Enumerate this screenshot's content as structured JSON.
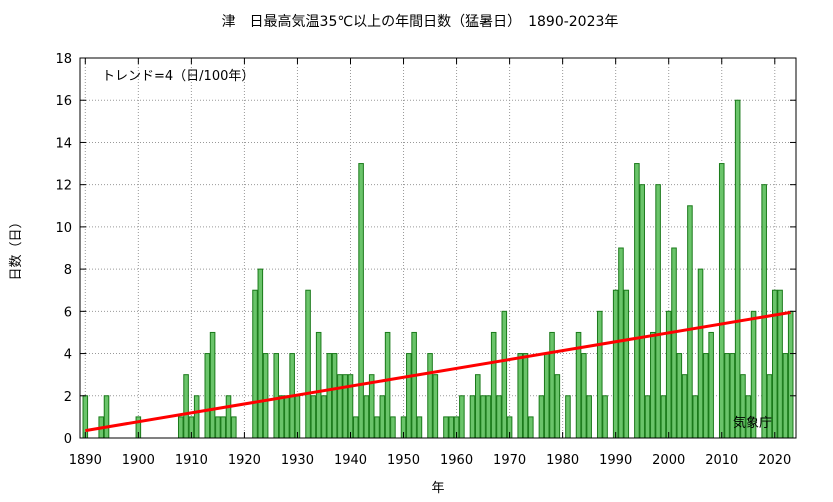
{
  "chart_data": {
    "type": "bar",
    "title": "津　日最高気温35℃以上の年間日数（猛暑日）　1890-2023年",
    "xlabel": "年",
    "ylabel": "日数（日）",
    "xlim": [
      1889,
      2024
    ],
    "ylim": [
      0,
      18
    ],
    "x_ticks": [
      1890,
      1900,
      1910,
      1920,
      1930,
      1940,
      1950,
      1960,
      1970,
      1980,
      1990,
      2000,
      2010,
      2020
    ],
    "y_ticks": [
      0,
      2,
      4,
      6,
      8,
      10,
      12,
      14,
      16,
      18
    ],
    "grid": true,
    "bar_color": "#6ac46a",
    "bar_edge_color": "#1a7a1a",
    "trend_color": "#ff0000",
    "trend_annotation": "トレンド=4（日/100年）",
    "source_label": "気象庁",
    "trend": {
      "x": [
        1890,
        2023
      ],
      "y": [
        0.35,
        5.95
      ]
    },
    "x": [
      1890,
      1891,
      1892,
      1893,
      1894,
      1895,
      1896,
      1897,
      1898,
      1899,
      1900,
      1901,
      1902,
      1903,
      1904,
      1905,
      1906,
      1907,
      1908,
      1909,
      1910,
      1911,
      1912,
      1913,
      1914,
      1915,
      1916,
      1917,
      1918,
      1919,
      1920,
      1921,
      1922,
      1923,
      1924,
      1925,
      1926,
      1927,
      1928,
      1929,
      1930,
      1931,
      1932,
      1933,
      1934,
      1935,
      1936,
      1937,
      1938,
      1939,
      1940,
      1941,
      1942,
      1943,
      1944,
      1945,
      1946,
      1947,
      1948,
      1949,
      1950,
      1951,
      1952,
      1953,
      1954,
      1955,
      1956,
      1957,
      1958,
      1959,
      1960,
      1961,
      1962,
      1963,
      1964,
      1965,
      1966,
      1967,
      1968,
      1969,
      1970,
      1971,
      1972,
      1973,
      1974,
      1975,
      1976,
      1977,
      1978,
      1979,
      1980,
      1981,
      1982,
      1983,
      1984,
      1985,
      1986,
      1987,
      1988,
      1989,
      1990,
      1991,
      1992,
      1993,
      1994,
      1995,
      1996,
      1997,
      1998,
      1999,
      2000,
      2001,
      2002,
      2003,
      2004,
      2005,
      2006,
      2007,
      2008,
      2009,
      2010,
      2011,
      2012,
      2013,
      2014,
      2015,
      2016,
      2017,
      2018,
      2019,
      2020,
      2021,
      2022,
      2023
    ],
    "values": [
      2,
      0,
      0,
      1,
      2,
      0,
      0,
      0,
      0,
      0,
      1,
      0,
      0,
      0,
      0,
      0,
      0,
      0,
      1,
      3,
      1,
      2,
      0,
      4,
      5,
      1,
      1,
      2,
      1,
      0,
      0,
      0,
      7,
      8,
      4,
      0,
      4,
      2,
      2,
      4,
      2,
      0,
      7,
      2,
      5,
      2,
      4,
      4,
      3,
      3,
      3,
      1,
      13,
      2,
      3,
      1,
      2,
      5,
      1,
      0,
      1,
      4,
      5,
      1,
      0,
      4,
      3,
      0,
      1,
      1,
      1,
      2,
      0,
      2,
      3,
      2,
      2,
      5,
      2,
      6,
      1,
      0,
      4,
      4,
      1,
      0,
      2,
      4,
      5,
      3,
      0,
      2,
      0,
      5,
      4,
      2,
      0,
      6,
      2,
      0,
      7,
      9,
      7,
      0,
      13,
      12,
      2,
      5,
      12,
      2,
      6,
      9,
      4,
      3,
      11,
      2,
      8,
      4,
      5,
      0,
      13,
      4,
      4,
      16,
      3,
      2,
      6,
      0,
      12,
      3,
      7,
      7,
      4,
      6
    ]
  }
}
